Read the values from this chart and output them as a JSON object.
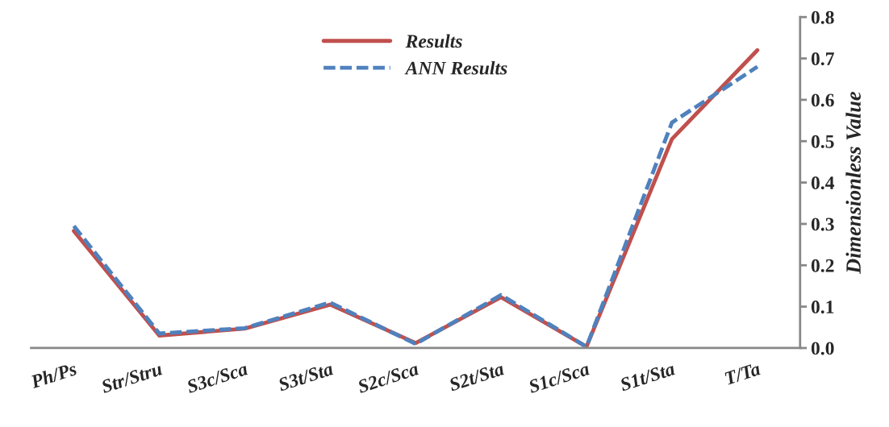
{
  "chart_data": {
    "type": "line",
    "ylabel": "Dimensionless Value",
    "categories": [
      "Ph/Ps",
      "Str/Stru",
      "S3c/Sca",
      "S3t/Sta",
      "S2c/Sca",
      "S2t/Sta",
      "S1c/Sca",
      "S1t/Sta",
      "T/Ta"
    ],
    "series": [
      {
        "name": "Results",
        "color": "#c0504d",
        "line_style": "solid",
        "values": [
          0.283,
          0.03,
          0.047,
          0.105,
          0.012,
          0.123,
          0.003,
          0.505,
          0.72
        ]
      },
      {
        "name": "ANN Results",
        "color": "#4f81bd",
        "line_style": "dashed",
        "values": [
          0.295,
          0.035,
          0.048,
          0.11,
          0.01,
          0.128,
          0.003,
          0.545,
          0.68
        ]
      }
    ],
    "ylim": [
      0,
      0.8
    ],
    "yticks": [
      {
        "value": 0,
        "label": "0.0"
      },
      0.1,
      0.2,
      0.3,
      0.4,
      0.5,
      0.6,
      0.7,
      0.8
    ],
    "grid": false,
    "legend": "top",
    "marker": "none"
  }
}
